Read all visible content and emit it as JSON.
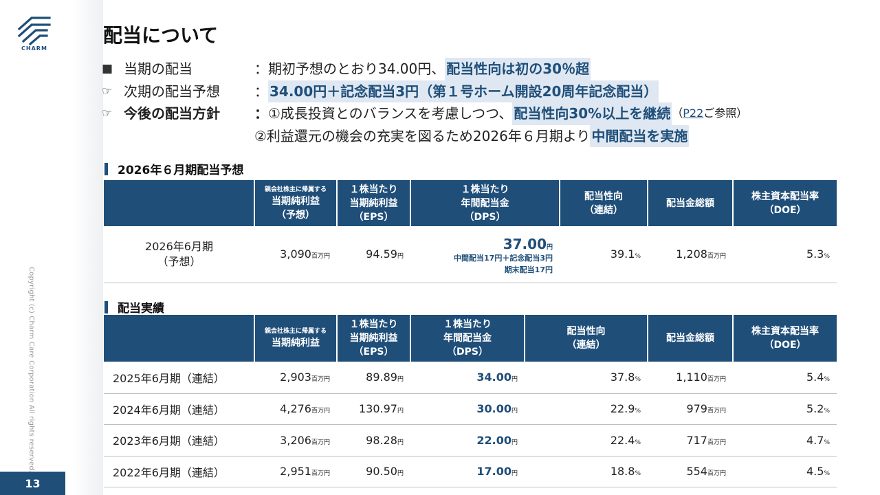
{
  "brand": {
    "name": "CHARM",
    "accent": "#1f4e79",
    "highlight_bg": "#dfe8f2"
  },
  "page_number": "13",
  "copyright": "Copyright (c) Charm Care Corporation All rights reserved.",
  "title": "配当について",
  "bullets": {
    "row1": {
      "mark": "■",
      "label": "当期の配当",
      "sep": "：",
      "text": "期初予想のとおり34.00円、",
      "highlight": "配当性向は初の30％超"
    },
    "row2": {
      "mark": "☞",
      "label": "次期の配当予想",
      "sep": "：",
      "highlight": "34.00円＋記念配当3円（第１号ホーム開設20周年記念配当）"
    },
    "row3": {
      "mark": "☞",
      "label": "今後の配当方針",
      "sep": "：",
      "text": "①成長投資とのバランスを考慮しつつ、",
      "highlight": "配当性向30%以上を継続",
      "ref_open": "（",
      "ref_link": "P22",
      "ref_close": "ご参照）"
    },
    "row4": {
      "text": "②利益還元の機会の充実を図るため2026年６月期より",
      "highlight": "中間配当を実施"
    }
  },
  "forecast": {
    "heading": "2026年６月期配当予想",
    "headers": {
      "c2_tiny": "親会社株主に帰属する",
      "c2_l1": "当期純利益",
      "c2_l2": "（予想）",
      "c3_l1": "１株当たり",
      "c3_l2": "当期純利益",
      "c3_l3": "（EPS）",
      "c4_l1": "１株当たり",
      "c4_l2": "年間配当金",
      "c4_l3": "（DPS）",
      "c5_l1": "配当性向",
      "c5_l2": "（連結）",
      "c6_l1": "配当金総額",
      "c7_l1": "株主資本配当率",
      "c7_l2": "（DOE）"
    },
    "row": {
      "label_l1": "2026年6月期",
      "label_l2": "（予想）",
      "net_income": "3,090",
      "eps": "94.59",
      "dps": "37.00",
      "dps_note1": "中間配当17円＋記念配当3円",
      "dps_note2": "期末配当17円",
      "payout": "39.1",
      "total": "1,208",
      "doe": "5.3"
    }
  },
  "results": {
    "heading": "配当実績",
    "headers": {
      "c2_tiny": "親会社株主に帰属する",
      "c2_l1": "当期純利益",
      "c3_l1": "１株当たり",
      "c3_l2": "当期純利益",
      "c3_l3": "（EPS）",
      "c4_l1": "１株当たり",
      "c4_l2": "年間配当金",
      "c4_l3": "（DPS）",
      "c5_l1": "配当性向",
      "c5_l2": "（連結）",
      "c6_l1": "配当金総額",
      "c7_l1": "株主資本配当率",
      "c7_l2": "（DOE）"
    },
    "rows": [
      {
        "label": "2025年6月期（連結）",
        "net_income": "2,903",
        "eps": "89.89",
        "dps": "34.00",
        "payout": "37.8",
        "total": "1,110",
        "doe": "5.4"
      },
      {
        "label": "2024年6月期（連結）",
        "net_income": "4,276",
        "eps": "130.97",
        "dps": "30.00",
        "payout": "22.9",
        "total": "979",
        "doe": "5.2"
      },
      {
        "label": "2023年6月期（連結）",
        "net_income": "3,206",
        "eps": "98.28",
        "dps": "22.00",
        "payout": "22.4",
        "total": "717",
        "doe": "4.7"
      },
      {
        "label": "2022年6月期（連結）",
        "net_income": "2,951",
        "eps": "90.50",
        "dps": "17.00",
        "payout": "18.8",
        "total": "554",
        "doe": "4.5"
      }
    ]
  },
  "units": {
    "million_yen": "百万円",
    "yen": "円",
    "percent": "%"
  }
}
